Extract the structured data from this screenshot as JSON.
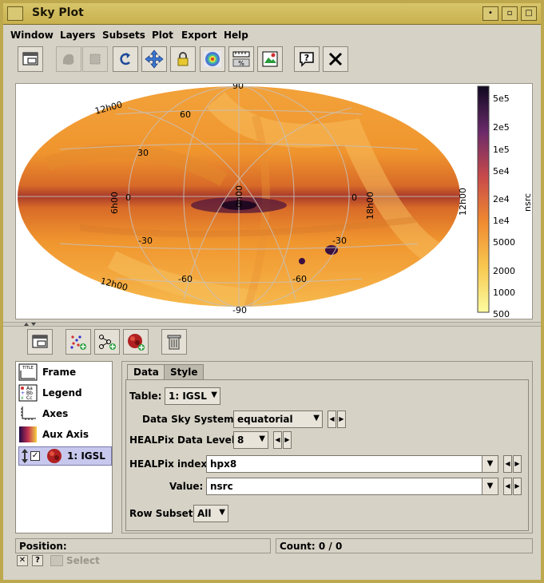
{
  "window": {
    "title": "Sky Plot"
  },
  "menu": [
    "Window",
    "Layers",
    "Subsets",
    "Plot",
    "Export",
    "Help"
  ],
  "toolbar": {
    "buttons": [
      "window-icon",
      "blob-icon",
      "dots-icon",
      "rotate-icon",
      "move-icon",
      "lock-icon",
      "heatmap-icon",
      "ruler-icon",
      "image-export-icon",
      "help-icon",
      "close-icon"
    ]
  },
  "plot": {
    "colorbar_label": "nsrc",
    "colorbar_ticks": [
      "5e5",
      "2e5",
      "1e5",
      "5e4",
      "2e4",
      "1e4",
      "5000",
      "2000",
      "1000",
      "500"
    ],
    "grid_labels": {
      "lat_top": "90",
      "lat_bottom": "-90",
      "left_60": "60",
      "left_30": "30",
      "left_0": "0",
      "left_m30": "-30",
      "left_m60": "-60",
      "right_0": "0",
      "right_m30": "-30",
      "right_m60": "-60",
      "ra_top_left": "12h00",
      "ra_left": "6h00",
      "ra_center": "0h00",
      "ra_right": "18h00",
      "ra_far_right": "12h00",
      "ra_bottom_left": "12h00"
    },
    "colors": {
      "low": "#fff4a0",
      "mid": "#f0a030",
      "high": "#2a0a40"
    }
  },
  "layers": {
    "items": [
      "Frame",
      "Legend",
      "Axes",
      "Aux Axis",
      "1: IGSL"
    ]
  },
  "tabs": [
    "Data",
    "Style"
  ],
  "form": {
    "table_label": "Table:",
    "table_value": "1: IGSL",
    "sky_system_label": "Data Sky System:",
    "sky_system_value": "equatorial",
    "level_label": "HEALPix Data Level:",
    "level_value": "8",
    "index_label": "HEALPix index:",
    "index_value": "hpx8",
    "value_label": "Value:",
    "value_value": "nsrc",
    "subset_label": "Row Subset:",
    "subset_value": "All"
  },
  "status": {
    "position_label": "Position:",
    "count_label": "Count: 0 / 0",
    "select_label": "Select"
  }
}
